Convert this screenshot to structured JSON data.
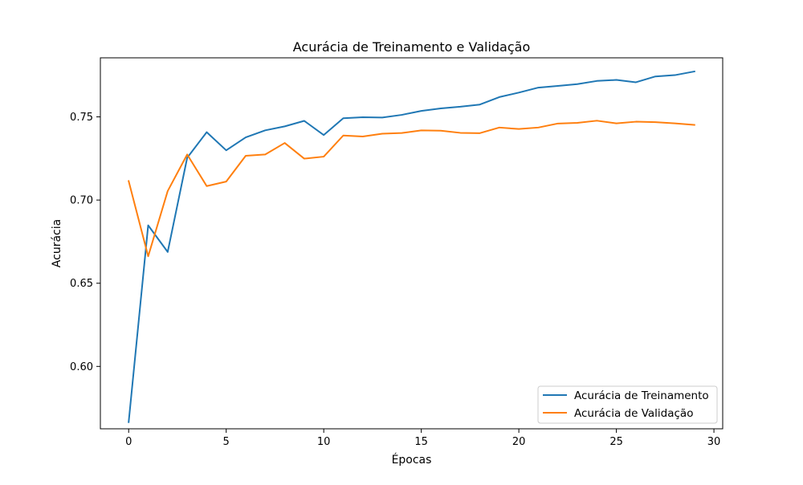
{
  "chart_data": {
    "type": "line",
    "title": "Acurácia de Treinamento e Validação",
    "xlabel": "Épocas",
    "ylabel": "Acurácia",
    "xlim": [
      -1.45,
      30.45
    ],
    "ylim": [
      0.5625,
      0.7855
    ],
    "xticks": [
      0,
      5,
      10,
      15,
      20,
      25,
      30
    ],
    "xtick_labels": [
      "0",
      "5",
      "10",
      "15",
      "20",
      "25",
      "30"
    ],
    "yticks": [
      0.6,
      0.65,
      0.7,
      0.75
    ],
    "ytick_labels": [
      "0.60",
      "0.65",
      "0.70",
      "0.75"
    ],
    "grid": false,
    "legend_position": "lower-right",
    "x": [
      0,
      1,
      2,
      3,
      4,
      5,
      6,
      7,
      8,
      9,
      10,
      11,
      12,
      13,
      14,
      15,
      16,
      17,
      18,
      19,
      20,
      21,
      22,
      23,
      24,
      25,
      26,
      27,
      28,
      29
    ],
    "series": [
      {
        "name": "Acurácia de Treinamento",
        "color": "#1f77b4",
        "values": [
          0.5665,
          0.6848,
          0.6688,
          0.7254,
          0.7408,
          0.7299,
          0.7377,
          0.7419,
          0.7443,
          0.7476,
          0.7391,
          0.7492,
          0.7498,
          0.7496,
          0.7512,
          0.7536,
          0.7551,
          0.7561,
          0.7574,
          0.7619,
          0.7646,
          0.7676,
          0.7686,
          0.7697,
          0.7716,
          0.7722,
          0.7708,
          0.7743,
          0.7751,
          0.7773
        ]
      },
      {
        "name": "Acurácia de Validação",
        "color": "#ff7f0e",
        "values": [
          0.7114,
          0.6662,
          0.7054,
          0.7274,
          0.7084,
          0.7111,
          0.7266,
          0.7274,
          0.7343,
          0.7249,
          0.7261,
          0.7388,
          0.7382,
          0.7399,
          0.7403,
          0.7419,
          0.7417,
          0.7404,
          0.7402,
          0.7436,
          0.7427,
          0.7436,
          0.746,
          0.7464,
          0.7477,
          0.7461,
          0.7471,
          0.7468,
          0.7461,
          0.7452
        ]
      }
    ]
  }
}
